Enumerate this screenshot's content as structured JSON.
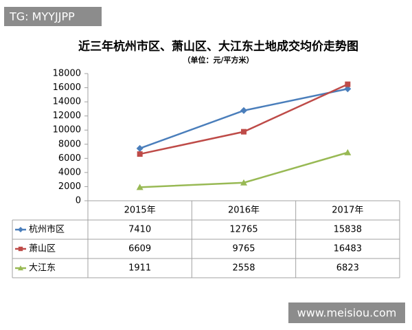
{
  "watermarks": [
    "TG: MYYJJPP",
    "www.meisiou.com"
  ],
  "chart_data": {
    "type": "line",
    "title": "近三年杭州市区、萧山区、大江东土地成交均价走势图",
    "subtitle": "（单位：元/平方米）",
    "categories": [
      "2015年",
      "2016年",
      "2017年"
    ],
    "series": [
      {
        "name": "杭州市区",
        "color": "#4a7ebb",
        "marker": "diamond",
        "values": [
          7410,
          12765,
          15838
        ]
      },
      {
        "name": "萧山区",
        "color": "#be4b48",
        "marker": "square",
        "values": [
          6609,
          9765,
          16483
        ]
      },
      {
        "name": "大江东",
        "color": "#98b954",
        "marker": "triangle",
        "values": [
          1911,
          2558,
          6823
        ]
      }
    ],
    "ylim": [
      0,
      18000
    ],
    "yticks": [
      0,
      2000,
      4000,
      6000,
      8000,
      10000,
      12000,
      14000,
      16000,
      18000
    ],
    "grid": false,
    "data_table": true
  }
}
